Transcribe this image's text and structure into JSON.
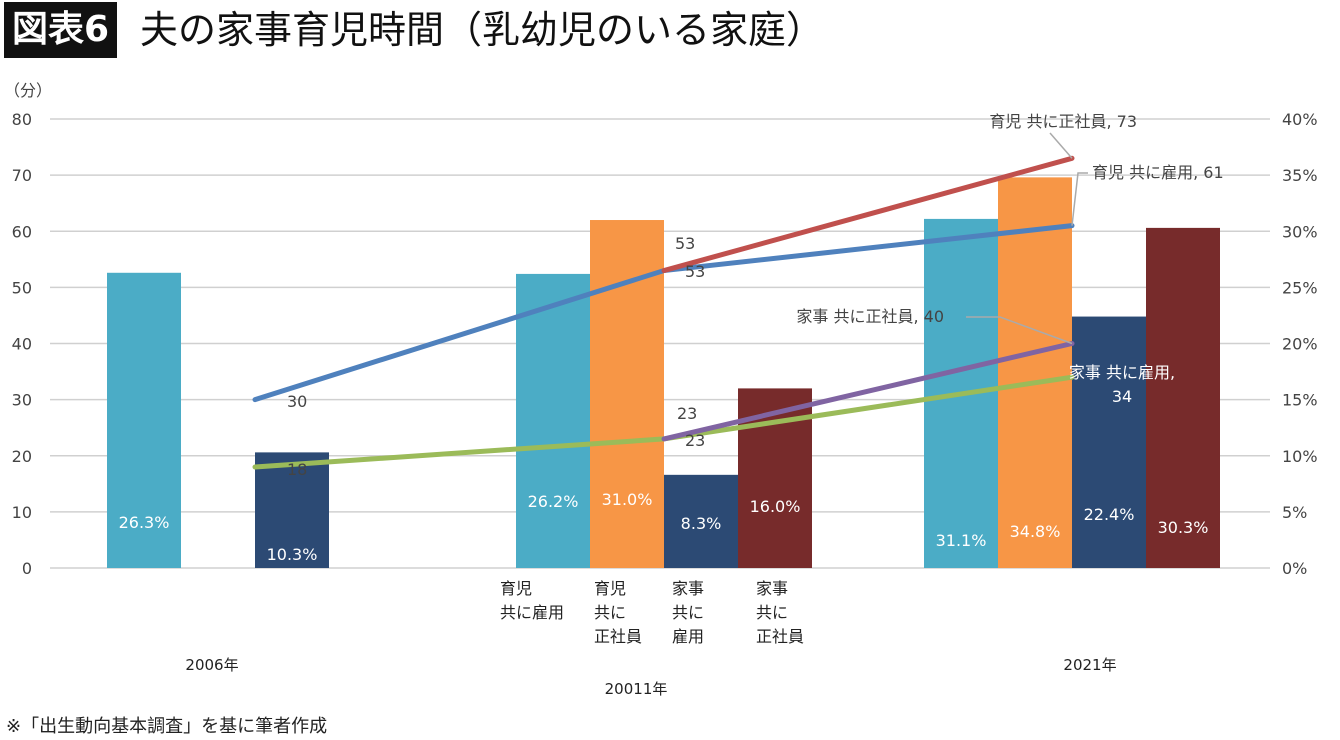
{
  "title_badge": "図表6",
  "title": "夫の家事育児時間（乳幼児のいる家庭）",
  "note": "※「出生動向基本調査」を基に筆者作成",
  "chart_data": {
    "type": "bar+line",
    "ylabel": "（分）",
    "ylim": [
      0,
      80
    ],
    "y_ticks": [
      "0",
      "10",
      "20",
      "30",
      "40",
      "50",
      "60",
      "70",
      "80"
    ],
    "y2lim": [
      0,
      40
    ],
    "y2_ticks": [
      "0%",
      "5%",
      "10%",
      "15%",
      "20%",
      "25%",
      "30%",
      "35%",
      "40%"
    ],
    "grid": true,
    "groups": [
      "2006年",
      "20011年",
      "2021年"
    ],
    "category_labels": [
      [
        "育児",
        "共に雇用"
      ],
      [
        "育児",
        "共に",
        "正社員"
      ],
      [
        "家事",
        "共に",
        "雇用"
      ],
      [
        "家事",
        "共に",
        "正社員"
      ]
    ],
    "bar_series": [
      {
        "color": "#4bacc6",
        "values": [
          26.3,
          26.2,
          31.1
        ],
        "labels": [
          "26.3%",
          "26.2%",
          "31.1%"
        ]
      },
      {
        "color": "#f79646",
        "values": [
          null,
          31.0,
          34.8
        ],
        "labels": [
          "",
          "31.0%",
          "34.8%"
        ]
      },
      {
        "color": "#2c4a74",
        "values": [
          10.3,
          8.3,
          22.4
        ],
        "labels": [
          "10.3%",
          "8.3%",
          "22.4%"
        ]
      },
      {
        "color": "#772b2b",
        "values": [
          null,
          16.0,
          30.3
        ],
        "labels": [
          "",
          "16.0%",
          "30.3%"
        ]
      }
    ],
    "line_series": [
      {
        "color": "#9bbb59",
        "values": [
          18,
          23,
          34
        ],
        "labels": [
          "18",
          "23",
          "家事 共に雇用, 34"
        ]
      },
      {
        "color": "#8064a2",
        "values": [
          null,
          23,
          40
        ],
        "labels": [
          "",
          "23",
          "家事 共に正社員, 40"
        ]
      },
      {
        "color": "#4f81bd",
        "values": [
          30,
          53,
          61
        ],
        "labels": [
          "30",
          "53",
          "育児 共に雇用, 61"
        ]
      },
      {
        "color": "#c0504d",
        "values": [
          null,
          53,
          73
        ],
        "labels": [
          "",
          "53",
          "育児 共に正社員, 73"
        ]
      }
    ]
  }
}
